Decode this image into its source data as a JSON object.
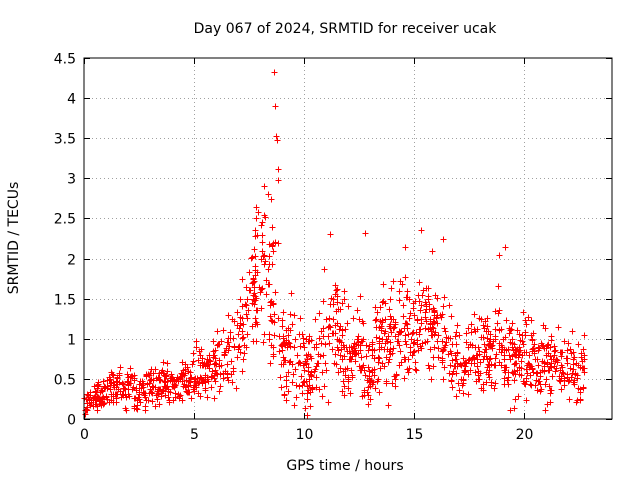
{
  "chart_data": {
    "type": "scatter",
    "title": "Day 067 of 2024, SRMTID for receiver ucak",
    "xlabel": "GPS time / hours",
    "ylabel": "SRMTID / TECUs",
    "xlim": [
      0,
      24
    ],
    "ylim": [
      0,
      4.5
    ],
    "x_ticks": [
      0,
      5,
      10,
      15,
      20
    ],
    "y_ticks": [
      0,
      0.5,
      1,
      1.5,
      2,
      2.5,
      3,
      3.5,
      4,
      4.5
    ],
    "x_tick_labels": [
      "0",
      "5",
      "10",
      "15",
      "20"
    ],
    "y_tick_labels": [
      "0",
      "0.5",
      "1",
      "1.5",
      "2",
      "2.5",
      "3",
      "3.5",
      "4",
      "4.5"
    ],
    "grid": true,
    "marker": "+",
    "color": "#ff0000",
    "series": [
      {
        "name": "SRMTID",
        "x": [
          0.0,
          0.25,
          0.5,
          0.75,
          1.0,
          1.25,
          1.5,
          1.75,
          2.0,
          2.25,
          2.5,
          2.75,
          3.0,
          3.25,
          3.5,
          3.75,
          4.0,
          4.25,
          4.5,
          4.75,
          5.0,
          5.25,
          5.5,
          5.75,
          6.0,
          6.25,
          6.5,
          6.75,
          7.0,
          7.25,
          7.5,
          7.75,
          8.0,
          8.25,
          8.5,
          8.75,
          9.0,
          9.25,
          9.5,
          9.75,
          10.0,
          10.25,
          10.5,
          10.75,
          11.0,
          11.25,
          11.5,
          11.75,
          12.0,
          12.25,
          12.5,
          12.75,
          13.0,
          13.25,
          13.5,
          13.75,
          14.0,
          14.25,
          14.5,
          14.75,
          15.0,
          15.25,
          15.5,
          15.75,
          16.0,
          16.25,
          16.5,
          16.75,
          17.0,
          17.25,
          17.5,
          17.75,
          18.0,
          18.25,
          18.5,
          18.75,
          19.0,
          19.25,
          19.5,
          19.75,
          20.0,
          20.25,
          20.5,
          20.75,
          21.0,
          21.25,
          21.5,
          21.75,
          22.0,
          22.25,
          22.5,
          22.75
        ],
        "y": [
          0.17,
          0.26,
          0.3,
          0.28,
          0.36,
          0.41,
          0.46,
          0.36,
          0.42,
          0.4,
          0.35,
          0.42,
          0.45,
          0.38,
          0.44,
          0.4,
          0.39,
          0.48,
          0.5,
          0.47,
          0.58,
          0.62,
          0.55,
          0.64,
          0.7,
          0.74,
          0.83,
          0.86,
          0.98,
          1.25,
          1.55,
          1.72,
          1.79,
          1.6,
          1.45,
          1.39,
          0.72,
          0.9,
          0.95,
          0.82,
          0.63,
          0.6,
          0.66,
          0.71,
          0.89,
          1.22,
          1.14,
          0.92,
          0.69,
          0.79,
          0.95,
          0.7,
          0.48,
          0.93,
          1.04,
          0.89,
          1.01,
          0.9,
          1.14,
          0.92,
          1.08,
          1.28,
          1.21,
          0.99,
          1.13,
          1.09,
          0.82,
          0.74,
          0.72,
          0.66,
          0.73,
          0.87,
          0.85,
          0.91,
          0.84,
          1.16,
          1.06,
          0.92,
          0.74,
          0.68,
          0.79,
          0.72,
          0.69,
          0.76,
          0.66,
          0.7,
          0.75,
          0.71,
          0.63,
          0.57,
          0.56,
          0.6
        ],
        "spread": [
          0.12,
          0.14,
          0.16,
          0.14,
          0.16,
          0.18,
          0.2,
          0.18,
          0.2,
          0.2,
          0.18,
          0.2,
          0.22,
          0.2,
          0.22,
          0.22,
          0.22,
          0.24,
          0.25,
          0.25,
          0.28,
          0.3,
          0.3,
          0.32,
          0.32,
          0.34,
          0.38,
          0.4,
          0.45,
          0.5,
          0.58,
          0.62,
          0.75,
          0.8,
          0.8,
          0.75,
          0.55,
          0.5,
          0.5,
          0.45,
          0.4,
          0.38,
          0.4,
          0.45,
          0.5,
          0.55,
          0.5,
          0.5,
          0.45,
          0.45,
          0.5,
          0.45,
          0.38,
          0.5,
          0.5,
          0.5,
          0.52,
          0.5,
          0.55,
          0.5,
          0.52,
          0.58,
          0.55,
          0.5,
          0.55,
          0.52,
          0.45,
          0.42,
          0.4,
          0.38,
          0.4,
          0.45,
          0.45,
          0.48,
          0.45,
          0.55,
          0.55,
          0.5,
          0.42,
          0.4,
          0.42,
          0.4,
          0.38,
          0.4,
          0.38,
          0.38,
          0.4,
          0.38,
          0.36,
          0.34,
          0.32,
          0.32
        ],
        "peaks": [
          {
            "x": 8.65,
            "y": 4.32
          },
          {
            "x": 8.7,
            "y": 3.9
          },
          {
            "x": 8.72,
            "y": 3.53
          },
          {
            "x": 8.75,
            "y": 3.48
          },
          {
            "x": 8.8,
            "y": 3.12
          },
          {
            "x": 8.82,
            "y": 2.98
          },
          {
            "x": 8.2,
            "y": 2.9
          },
          {
            "x": 8.35,
            "y": 2.8
          },
          {
            "x": 8.5,
            "y": 2.74
          },
          {
            "x": 7.9,
            "y": 2.58
          },
          {
            "x": 8.1,
            "y": 2.45
          },
          {
            "x": 8.6,
            "y": 2.2
          },
          {
            "x": 11.2,
            "y": 2.3
          },
          {
            "x": 12.75,
            "y": 2.32
          },
          {
            "x": 15.3,
            "y": 2.35
          },
          {
            "x": 16.3,
            "y": 2.25
          },
          {
            "x": 14.6,
            "y": 2.15
          },
          {
            "x": 19.15,
            "y": 2.15
          },
          {
            "x": 18.85,
            "y": 2.05
          },
          {
            "x": 15.8,
            "y": 2.1
          },
          {
            "x": 10.9,
            "y": 1.87
          }
        ]
      }
    ]
  }
}
